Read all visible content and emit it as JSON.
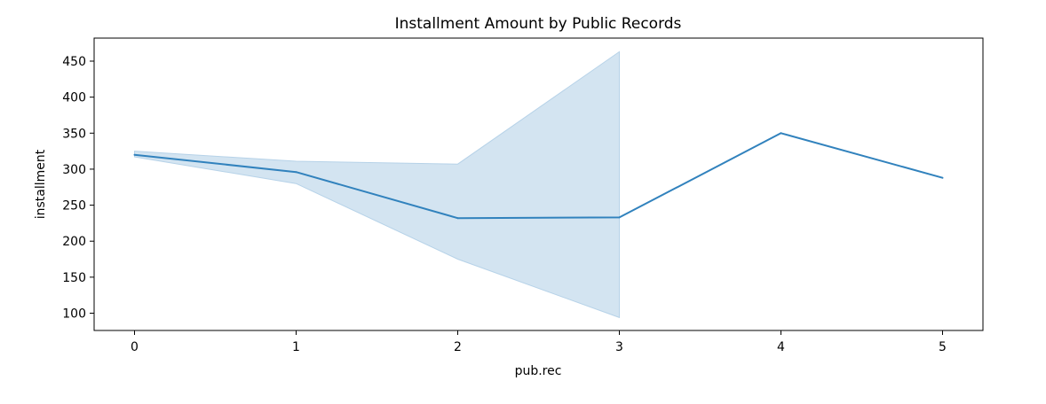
{
  "chart_data": {
    "type": "line",
    "title": "Installment Amount by Public Records",
    "xlabel": "pub.rec",
    "ylabel": "installment",
    "x": [
      0,
      1,
      2,
      3,
      4,
      5
    ],
    "xticks": [
      "0",
      "1",
      "2",
      "3",
      "4",
      "5"
    ],
    "yticks": [
      "100",
      "150",
      "200",
      "250",
      "300",
      "350",
      "400",
      "450"
    ],
    "xlim": [
      -0.25,
      5.25
    ],
    "ylim": [
      76,
      482
    ],
    "series": [
      {
        "values": [
          320,
          296,
          232,
          233,
          350,
          288
        ],
        "ci_lower": [
          317,
          280,
          175,
          94,
          null,
          null
        ],
        "ci_upper": [
          325,
          311,
          307,
          463,
          null,
          null
        ],
        "color": "#3182bd",
        "band_color": "#b6d2e8"
      }
    ],
    "grid": false,
    "legend": "none"
  }
}
